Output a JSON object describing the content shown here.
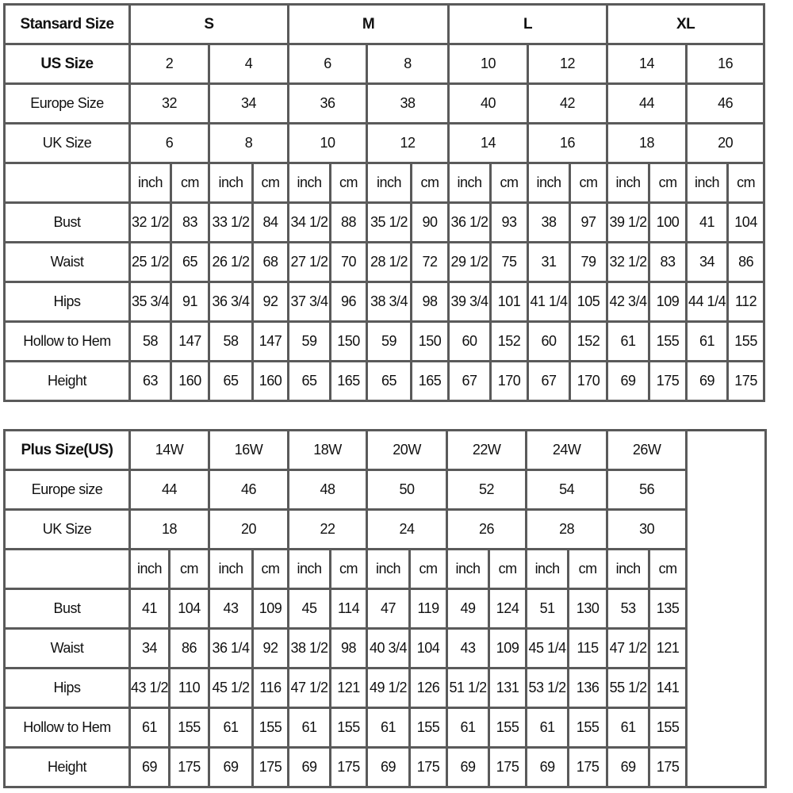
{
  "standard_table": {
    "header": {
      "label": "Stansard Size",
      "groups": [
        "S",
        "M",
        "L",
        "XL"
      ]
    },
    "rows": [
      {
        "label": "US Size",
        "bold": true,
        "values": [
          "2",
          "4",
          "6",
          "8",
          "10",
          "12",
          "14",
          "16"
        ]
      },
      {
        "label": "Europe Size",
        "values": [
          "32",
          "34",
          "36",
          "38",
          "40",
          "42",
          "44",
          "46"
        ]
      },
      {
        "label": "UK Size",
        "values": [
          "6",
          "8",
          "10",
          "12",
          "14",
          "16",
          "18",
          "20"
        ]
      }
    ],
    "units": [
      "inch",
      "cm"
    ],
    "measurements": [
      {
        "label": "Bust",
        "values": [
          "32 1/2",
          "83",
          "33 1/2",
          "84",
          "34 1/2",
          "88",
          "35 1/2",
          "90",
          "36 1/2",
          "93",
          "38",
          "97",
          "39 1/2",
          "100",
          "41",
          "104"
        ]
      },
      {
        "label": "Waist",
        "values": [
          "25 1/2",
          "65",
          "26 1/2",
          "68",
          "27 1/2",
          "70",
          "28 1/2",
          "72",
          "29 1/2",
          "75",
          "31",
          "79",
          "32 1/2",
          "83",
          "34",
          "86"
        ]
      },
      {
        "label": "Hips",
        "values": [
          "35 3/4",
          "91",
          "36 3/4",
          "92",
          "37 3/4",
          "96",
          "38 3/4",
          "98",
          "39 3/4",
          "101",
          "41 1/4",
          "105",
          "42 3/4",
          "109",
          "44 1/4",
          "112"
        ]
      },
      {
        "label": "Hollow to Hem",
        "values": [
          "58",
          "147",
          "58",
          "147",
          "59",
          "150",
          "59",
          "150",
          "60",
          "152",
          "60",
          "152",
          "61",
          "155",
          "61",
          "155"
        ]
      },
      {
        "label": "Height",
        "values": [
          "63",
          "160",
          "65",
          "160",
          "65",
          "165",
          "65",
          "165",
          "67",
          "170",
          "67",
          "170",
          "69",
          "175",
          "69",
          "175"
        ]
      }
    ]
  },
  "plus_table": {
    "header": {
      "label": "Plus Size(US)",
      "sizes": [
        "14W",
        "16W",
        "18W",
        "20W",
        "22W",
        "24W",
        "26W"
      ]
    },
    "rows": [
      {
        "label": "Europe size",
        "values": [
          "44",
          "46",
          "48",
          "50",
          "52",
          "54",
          "56"
        ]
      },
      {
        "label": "UK Size",
        "values": [
          "18",
          "20",
          "22",
          "24",
          "26",
          "28",
          "30"
        ]
      }
    ],
    "units": [
      "inch",
      "cm"
    ],
    "measurements": [
      {
        "label": "Bust",
        "values": [
          "41",
          "104",
          "43",
          "109",
          "45",
          "114",
          "47",
          "119",
          "49",
          "124",
          "51",
          "130",
          "53",
          "135"
        ]
      },
      {
        "label": "Waist",
        "values": [
          "34",
          "86",
          "36 1/4",
          "92",
          "38 1/2",
          "98",
          "40 3/4",
          "104",
          "43",
          "109",
          "45 1/4",
          "115",
          "47 1/2",
          "121"
        ]
      },
      {
        "label": "Hips",
        "values": [
          "43 1/2",
          "110",
          "45 1/2",
          "116",
          "47 1/2",
          "121",
          "49 1/2",
          "126",
          "51 1/2",
          "131",
          "53 1/2",
          "136",
          "55 1/2",
          "141"
        ]
      },
      {
        "label": "Hollow to Hem",
        "values": [
          "61",
          "155",
          "61",
          "155",
          "61",
          "155",
          "61",
          "155",
          "61",
          "155",
          "61",
          "155",
          "61",
          "155"
        ]
      },
      {
        "label": "Height",
        "values": [
          "69",
          "175",
          "69",
          "175",
          "69",
          "175",
          "69",
          "175",
          "69",
          "175",
          "69",
          "175",
          "69",
          "175"
        ]
      }
    ]
  }
}
